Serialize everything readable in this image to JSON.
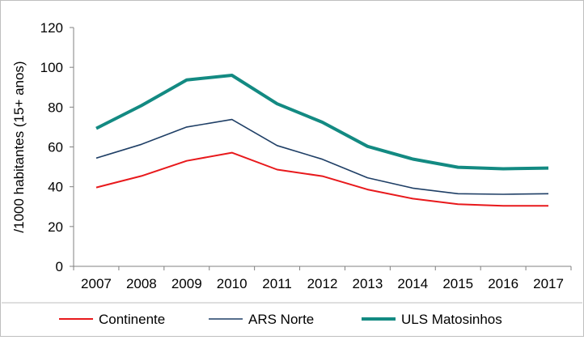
{
  "chart_data": {
    "type": "line",
    "title": "",
    "xlabel": "",
    "ylabel": "/1000 habitantes (15+ anos)",
    "categories": [
      "2007",
      "2008",
      "2009",
      "2010",
      "2011",
      "2012",
      "2013",
      "2014",
      "2015",
      "2016",
      "2017"
    ],
    "ylim": [
      0,
      120
    ],
    "yticks": [
      0,
      20,
      40,
      60,
      80,
      100,
      120
    ],
    "grid": false,
    "legend_position": "bottom",
    "series": [
      {
        "name": "Continente",
        "color": "#e8191c",
        "values": [
          39.6,
          45.4,
          53.0,
          57.1,
          48.6,
          45.3,
          38.6,
          34.0,
          31.2,
          30.4,
          30.4
        ]
      },
      {
        "name": "ARS Norte",
        "color": "#1f3f66",
        "values": [
          54.4,
          61.3,
          70.0,
          73.8,
          60.7,
          53.8,
          44.5,
          39.3,
          36.5,
          36.2,
          36.5
        ]
      },
      {
        "name": "ULS Matosinhos",
        "color": "#138a82",
        "values": [
          69.3,
          80.8,
          93.7,
          96.0,
          81.7,
          72.4,
          60.3,
          53.9,
          49.8,
          49.0,
          49.4
        ]
      }
    ]
  }
}
